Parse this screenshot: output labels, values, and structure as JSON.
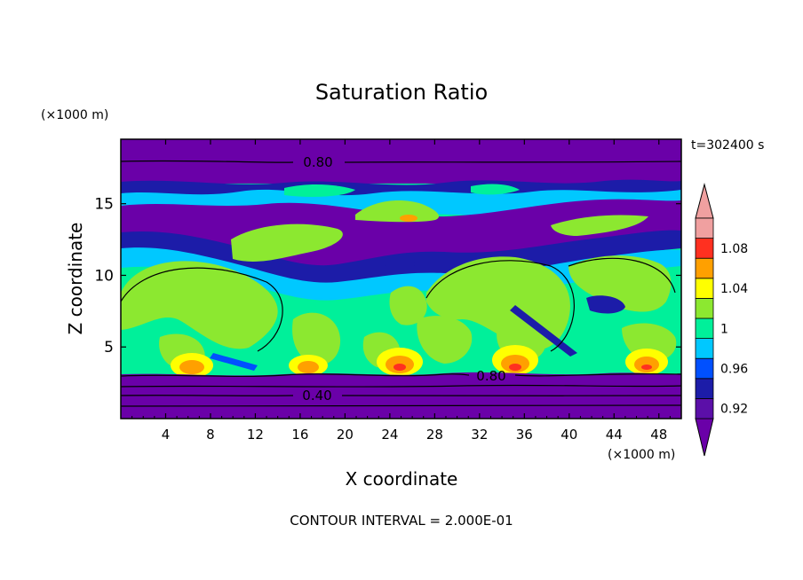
{
  "chart_data": {
    "type": "heatmap",
    "title": "Saturation Ratio",
    "xlabel": "X coordinate",
    "ylabel": "Z coordinate",
    "x_unit": "(×1000 m)",
    "y_unit": "(×1000 m)",
    "time_label": "t=302400 s",
    "footer": "CONTOUR INTERVAL = 2.000E-01",
    "xlim": [
      0,
      50
    ],
    "ylim": [
      0,
      19.5
    ],
    "x_ticks": [
      4,
      8,
      12,
      16,
      20,
      24,
      28,
      32,
      36,
      40,
      44,
      48
    ],
    "y_ticks": [
      5,
      10,
      15
    ],
    "contour_labels": [
      {
        "text": "0.80",
        "x": 17.5,
        "y": 18.2
      },
      {
        "text": "0.80",
        "x": 32.0,
        "y": 3.0
      },
      {
        "text": "0.40",
        "x": 17.0,
        "y": 1.7
      }
    ],
    "colorbar": {
      "levels": [
        0.92,
        0.94,
        0.96,
        0.98,
        1.0,
        1.02,
        1.04,
        1.06,
        1.08,
        1.1
      ],
      "tick_labels": [
        "0.92",
        "0.96",
        "1",
        "1.04",
        "1.08"
      ],
      "colors": [
        "#5b0fa8",
        "#1c1ca8",
        "#0050ff",
        "#00c8ff",
        "#00f09a",
        "#8ce830",
        "#ffff00",
        "#ffa000",
        "#ff3020",
        "#f0a0a0"
      ],
      "under_color": "#6a00a8",
      "over_color": "#f0a0a0"
    },
    "regions": {
      "low_stable_layer_top_z": 3.3,
      "cloud_layer_z": [
        3.5,
        13
      ],
      "dry_layer_z": [
        13,
        17
      ],
      "upper_dry_z": [
        17,
        19.5
      ],
      "surface_maxima_x": [
        6,
        16,
        25,
        35,
        46
      ]
    }
  }
}
